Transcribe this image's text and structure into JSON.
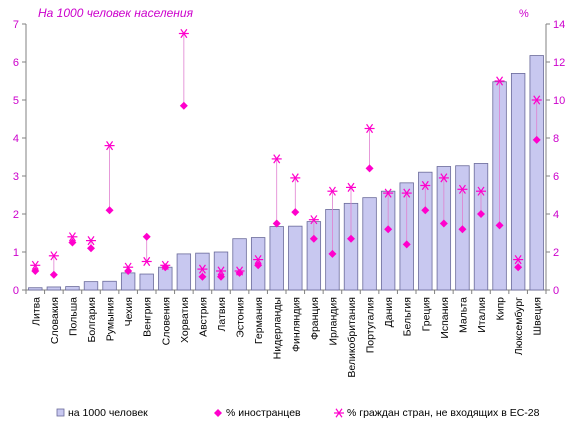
{
  "chart_data": {
    "type": "bar",
    "subtitle": "На 1000 человек населения",
    "right_axis_unit": "%",
    "left_ylim": [
      0,
      7
    ],
    "left_ticks": [
      0,
      1,
      2,
      3,
      4,
      5,
      6,
      7
    ],
    "right_ylim": [
      0,
      14
    ],
    "right_ticks": [
      0,
      2,
      4,
      6,
      8,
      10,
      12,
      14
    ],
    "grid": false,
    "legend_position": "bottom",
    "categories": [
      "Литва",
      "Словакия",
      "Польша",
      "Болгария",
      "Румыния",
      "Чехия",
      "Венгрия",
      "Словения",
      "Хорватия",
      "Австрия",
      "Латвия",
      "Эстония",
      "Германия",
      "Нидерланды",
      "Финляндия",
      "Франция",
      "Ирландия",
      "Великобритания",
      "Португалия",
      "Дания",
      "Бельгия",
      "Греция",
      "Испания",
      "Мальта",
      "Италия",
      "Кипр",
      "Люксембург",
      "Швеция"
    ],
    "series": [
      {
        "name": "на 1000 человек",
        "kind": "bar",
        "axis": "left",
        "color": "#c8c8f0",
        "values": [
          0.06,
          0.08,
          0.09,
          0.22,
          0.23,
          0.45,
          0.42,
          0.6,
          0.95,
          0.97,
          1.0,
          1.35,
          1.38,
          1.67,
          1.68,
          1.8,
          2.12,
          2.28,
          2.43,
          2.6,
          2.82,
          3.1,
          3.25,
          3.27,
          3.33,
          5.48,
          5.7,
          6.17
        ]
      },
      {
        "name": "% иностранцев",
        "kind": "diamond",
        "axis": "right",
        "color": "#ff00cc",
        "values": [
          1.0,
          0.8,
          2.5,
          2.2,
          4.2,
          1.0,
          2.8,
          1.2,
          9.7,
          0.7,
          0.7,
          0.9,
          1.3,
          3.5,
          4.1,
          2.7,
          1.9,
          2.7,
          6.4,
          3.2,
          2.4,
          4.2,
          3.5,
          3.2,
          4.0,
          3.4,
          1.2,
          7.9
        ]
      },
      {
        "name": "% граждан стран, не входящих в ЕС-28",
        "kind": "asterisk",
        "axis": "right",
        "color": "#ff00cc",
        "values": [
          1.3,
          1.8,
          2.8,
          2.6,
          7.6,
          1.2,
          1.5,
          1.3,
          13.5,
          1.1,
          1.0,
          1.0,
          1.6,
          6.9,
          5.9,
          3.7,
          5.2,
          5.4,
          8.5,
          5.1,
          5.1,
          5.5,
          5.9,
          5.3,
          5.2,
          11.0,
          1.6,
          10.0
        ]
      }
    ]
  }
}
